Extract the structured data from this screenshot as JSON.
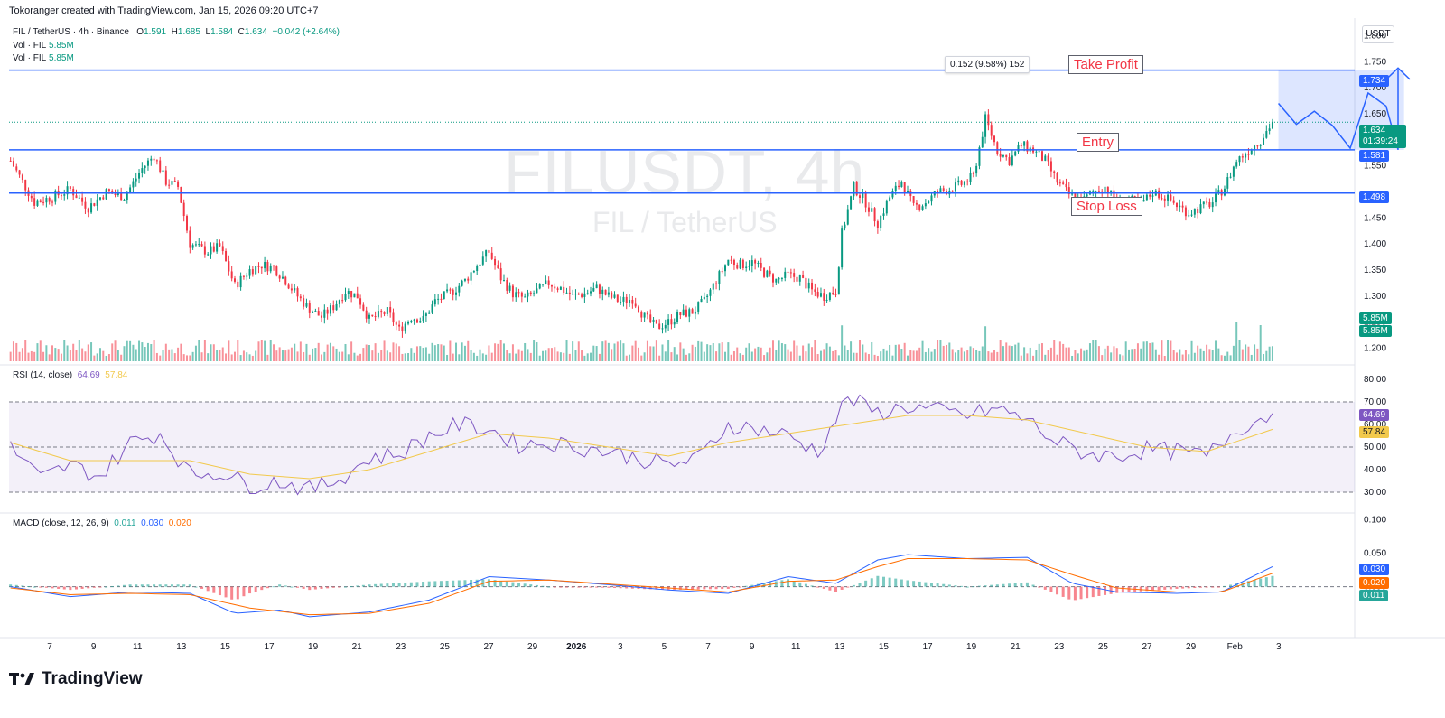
{
  "caption": "Tokoranger created with TradingView.com, Jan 15, 2026 09:20 UTC+7",
  "legend": {
    "symbol": "FIL / TetherUS · 4h · Binance",
    "o_label": "O",
    "o": "1.591",
    "h_label": "H",
    "h": "1.685",
    "l_label": "L",
    "l": "1.584",
    "c_label": "C",
    "c": "1.634",
    "change": "+0.042 (+2.64%)",
    "vol1_label": "Vol · FIL",
    "vol1": "5.85M",
    "vol2_label": "Vol · FIL",
    "vol2": "5.85M"
  },
  "currency": "USDT",
  "watermark": {
    "symbol": "FILUSDT, 4h",
    "name": "FIL / TetherUS"
  },
  "levels": {
    "take_profit": {
      "label": "Take Profit",
      "price": 1.734,
      "text": "1.734"
    },
    "entry": {
      "label": "Entry",
      "price": 1.581,
      "text": "1.581"
    },
    "stop_loss": {
      "label": "Stop Loss",
      "price": 1.498,
      "text": "1.498"
    }
  },
  "last_price": {
    "text": "1.634",
    "countdown": "01:39:24"
  },
  "volume_tags": [
    "5.85M",
    "5.85M"
  ],
  "measure_label": "0.152 (9.58%) 152",
  "rsi": {
    "title": "RSI (14, close)",
    "value": "64.69",
    "ma": "57.84"
  },
  "macd": {
    "title": "MACD (close, 12, 26, 9)",
    "hist": "0.011",
    "macd": "0.030",
    "signal": "0.020"
  },
  "brand": "TradingView",
  "colors": {
    "up": "#089981",
    "down": "#f23645",
    "level": "#2962ff",
    "rsi": "#7e57c2",
    "rsi_ma": "#f2c94c",
    "macd": "#2962ff",
    "signal": "#ff6d00"
  },
  "chart_data": [
    {
      "type": "candlestick",
      "title": "FIL / TetherUS · 4h · Binance",
      "ylim": [
        1.175,
        1.82
      ],
      "y_ticks": [
        "1.800",
        "1.750",
        "1.700",
        "1.650",
        "1.600",
        "1.550",
        "1.450",
        "1.400",
        "1.350",
        "1.300",
        "1.250",
        "1.200"
      ],
      "x_ticks": [
        "7",
        "9",
        "11",
        "13",
        "15",
        "17",
        "19",
        "21",
        "23",
        "25",
        "27",
        "29",
        "2026",
        "3",
        "5",
        "7",
        "9",
        "11",
        "13",
        "15",
        "17",
        "19",
        "21",
        "23",
        "25",
        "27",
        "29",
        "Feb",
        "3"
      ],
      "close_path": [
        {
          "i": 0,
          "y": 1.56
        },
        {
          "i": 4,
          "y": 1.52
        },
        {
          "i": 8,
          "y": 1.48
        },
        {
          "i": 14,
          "y": 1.49
        },
        {
          "i": 20,
          "y": 1.505
        },
        {
          "i": 26,
          "y": 1.47
        },
        {
          "i": 32,
          "y": 1.5
        },
        {
          "i": 38,
          "y": 1.49
        },
        {
          "i": 44,
          "y": 1.545
        },
        {
          "i": 48,
          "y": 1.57
        },
        {
          "i": 52,
          "y": 1.52
        },
        {
          "i": 56,
          "y": 1.51
        },
        {
          "i": 60,
          "y": 1.4
        },
        {
          "i": 66,
          "y": 1.385
        },
        {
          "i": 70,
          "y": 1.395
        },
        {
          "i": 75,
          "y": 1.32
        },
        {
          "i": 80,
          "y": 1.35
        },
        {
          "i": 84,
          "y": 1.36
        },
        {
          "i": 88,
          "y": 1.355
        },
        {
          "i": 92,
          "y": 1.33
        },
        {
          "i": 96,
          "y": 1.3
        },
        {
          "i": 100,
          "y": 1.275
        },
        {
          "i": 104,
          "y": 1.26
        },
        {
          "i": 108,
          "y": 1.28
        },
        {
          "i": 112,
          "y": 1.31
        },
        {
          "i": 116,
          "y": 1.3
        },
        {
          "i": 120,
          "y": 1.255
        },
        {
          "i": 126,
          "y": 1.27
        },
        {
          "i": 130,
          "y": 1.235
        },
        {
          "i": 134,
          "y": 1.26
        },
        {
          "i": 138,
          "y": 1.255
        },
        {
          "i": 142,
          "y": 1.29
        },
        {
          "i": 148,
          "y": 1.31
        },
        {
          "i": 152,
          "y": 1.33
        },
        {
          "i": 156,
          "y": 1.36
        },
        {
          "i": 160,
          "y": 1.385
        },
        {
          "i": 164,
          "y": 1.335
        },
        {
          "i": 168,
          "y": 1.305
        },
        {
          "i": 172,
          "y": 1.295
        },
        {
          "i": 176,
          "y": 1.31
        },
        {
          "i": 180,
          "y": 1.325
        },
        {
          "i": 184,
          "y": 1.315
        },
        {
          "i": 188,
          "y": 1.3
        },
        {
          "i": 192,
          "y": 1.305
        },
        {
          "i": 196,
          "y": 1.315
        },
        {
          "i": 200,
          "y": 1.3
        },
        {
          "i": 204,
          "y": 1.29
        },
        {
          "i": 208,
          "y": 1.295
        },
        {
          "i": 212,
          "y": 1.26
        },
        {
          "i": 216,
          "y": 1.24
        },
        {
          "i": 220,
          "y": 1.25
        },
        {
          "i": 224,
          "y": 1.265
        },
        {
          "i": 228,
          "y": 1.27
        },
        {
          "i": 232,
          "y": 1.29
        },
        {
          "i": 236,
          "y": 1.33
        },
        {
          "i": 240,
          "y": 1.37
        },
        {
          "i": 244,
          "y": 1.36
        },
        {
          "i": 248,
          "y": 1.365
        },
        {
          "i": 252,
          "y": 1.345
        },
        {
          "i": 256,
          "y": 1.33
        },
        {
          "i": 260,
          "y": 1.34
        },
        {
          "i": 264,
          "y": 1.335
        },
        {
          "i": 268,
          "y": 1.31
        },
        {
          "i": 272,
          "y": 1.3
        },
        {
          "i": 276,
          "y": 1.31
        },
        {
          "i": 278,
          "y": 1.42
        },
        {
          "i": 282,
          "y": 1.51
        },
        {
          "i": 286,
          "y": 1.48
        },
        {
          "i": 290,
          "y": 1.44
        },
        {
          "i": 294,
          "y": 1.49
        },
        {
          "i": 298,
          "y": 1.52
        },
        {
          "i": 302,
          "y": 1.47
        },
        {
          "i": 306,
          "y": 1.48
        },
        {
          "i": 310,
          "y": 1.5
        },
        {
          "i": 314,
          "y": 1.505
        },
        {
          "i": 318,
          "y": 1.515
        },
        {
          "i": 322,
          "y": 1.53
        },
        {
          "i": 326,
          "y": 1.64
        },
        {
          "i": 330,
          "y": 1.58
        },
        {
          "i": 334,
          "y": 1.56
        },
        {
          "i": 338,
          "y": 1.59
        },
        {
          "i": 342,
          "y": 1.58
        },
        {
          "i": 346,
          "y": 1.56
        },
        {
          "i": 350,
          "y": 1.52
        },
        {
          "i": 354,
          "y": 1.495
        },
        {
          "i": 358,
          "y": 1.48
        },
        {
          "i": 362,
          "y": 1.5
        },
        {
          "i": 366,
          "y": 1.51
        },
        {
          "i": 370,
          "y": 1.48
        },
        {
          "i": 374,
          "y": 1.485
        },
        {
          "i": 378,
          "y": 1.475
        },
        {
          "i": 382,
          "y": 1.5
        },
        {
          "i": 386,
          "y": 1.49
        },
        {
          "i": 390,
          "y": 1.475
        },
        {
          "i": 394,
          "y": 1.46
        },
        {
          "i": 398,
          "y": 1.47
        },
        {
          "i": 402,
          "y": 1.48
        },
        {
          "i": 406,
          "y": 1.51
        },
        {
          "i": 410,
          "y": 1.56
        },
        {
          "i": 414,
          "y": 1.58
        },
        {
          "i": 418,
          "y": 1.6
        },
        {
          "i": 422,
          "y": 1.634
        }
      ],
      "last_index": 422
    },
    {
      "type": "line",
      "title": "RSI (14, close)",
      "ylim": [
        22,
        84
      ],
      "y_ticks": [
        "80.00",
        "70.00",
        "60.00",
        "50.00",
        "40.00",
        "30.00"
      ],
      "band": [
        30,
        70
      ],
      "series": [
        {
          "values_at": [
            [
              0,
              50
            ],
            [
              10,
              36
            ],
            [
              20,
              42
            ],
            [
              30,
              37
            ],
            [
              40,
              52
            ],
            [
              50,
              56
            ],
            [
              60,
              38
            ],
            [
              70,
              39
            ],
            [
              80,
              33
            ],
            [
              90,
              35
            ],
            [
              100,
              31
            ],
            [
              110,
              36
            ],
            [
              120,
              45
            ],
            [
              130,
              47
            ],
            [
              140,
              55
            ],
            [
              150,
              60
            ],
            [
              160,
              58
            ],
            [
              170,
              51
            ],
            [
              180,
              52
            ],
            [
              190,
              50
            ],
            [
              200,
              48
            ],
            [
              210,
              45
            ],
            [
              220,
              42
            ],
            [
              230,
              45
            ],
            [
              240,
              60
            ],
            [
              250,
              58
            ],
            [
              260,
              55
            ],
            [
              270,
              48
            ],
            [
              280,
              72
            ],
            [
              290,
              65
            ],
            [
              300,
              68
            ],
            [
              310,
              66
            ],
            [
              320,
              64
            ],
            [
              330,
              67
            ],
            [
              340,
              62
            ],
            [
              350,
              52
            ],
            [
              360,
              47
            ],
            [
              370,
              46
            ],
            [
              380,
              49
            ],
            [
              390,
              48
            ],
            [
              400,
              46
            ],
            [
              410,
              58
            ],
            [
              422,
              64.69
            ]
          ]
        },
        {
          "values_at": [
            [
              0,
              52
            ],
            [
              20,
              44
            ],
            [
              40,
              44
            ],
            [
              60,
              44
            ],
            [
              80,
              38
            ],
            [
              100,
              36
            ],
            [
              120,
              40
            ],
            [
              140,
              48
            ],
            [
              160,
              56
            ],
            [
              180,
              54
            ],
            [
              200,
              50
            ],
            [
              220,
              46
            ],
            [
              240,
              52
            ],
            [
              260,
              56
            ],
            [
              280,
              60
            ],
            [
              300,
              64
            ],
            [
              320,
              64
            ],
            [
              340,
              62
            ],
            [
              360,
              56
            ],
            [
              380,
              50
            ],
            [
              400,
              48
            ],
            [
              422,
              57.84
            ]
          ]
        }
      ]
    },
    {
      "type": "line",
      "title": "MACD (close, 12, 26, 9)",
      "ylim": [
        -0.075,
        0.105
      ],
      "y_ticks": [
        "0.100",
        "0.050",
        "0.000"
      ],
      "series": [
        {
          "values_at": [
            [
              0,
              0.0
            ],
            [
              20,
              -0.015
            ],
            [
              40,
              -0.008
            ],
            [
              60,
              -0.01
            ],
            [
              75,
              -0.04
            ],
            [
              90,
              -0.035
            ],
            [
              100,
              -0.045
            ],
            [
              120,
              -0.038
            ],
            [
              140,
              -0.02
            ],
            [
              160,
              0.015
            ],
            [
              180,
              0.01
            ],
            [
              200,
              0.003
            ],
            [
              220,
              -0.005
            ],
            [
              240,
              -0.01
            ],
            [
              260,
              0.015
            ],
            [
              276,
              0.005
            ],
            [
              290,
              0.04
            ],
            [
              300,
              0.048
            ],
            [
              320,
              0.042
            ],
            [
              340,
              0.044
            ],
            [
              355,
              0.005
            ],
            [
              370,
              -0.008
            ],
            [
              390,
              -0.01
            ],
            [
              405,
              -0.008
            ],
            [
              422,
              0.03
            ]
          ]
        },
        {
          "values_at": [
            [
              0,
              -0.002
            ],
            [
              20,
              -0.012
            ],
            [
              40,
              -0.01
            ],
            [
              60,
              -0.012
            ],
            [
              80,
              -0.032
            ],
            [
              100,
              -0.042
            ],
            [
              120,
              -0.04
            ],
            [
              140,
              -0.025
            ],
            [
              160,
              0.008
            ],
            [
              180,
              0.01
            ],
            [
              200,
              0.004
            ],
            [
              220,
              -0.002
            ],
            [
              240,
              -0.008
            ],
            [
              260,
              0.008
            ],
            [
              276,
              0.01
            ],
            [
              290,
              0.03
            ],
            [
              300,
              0.042
            ],
            [
              320,
              0.042
            ],
            [
              340,
              0.04
            ],
            [
              355,
              0.018
            ],
            [
              370,
              -0.002
            ],
            [
              390,
              -0.008
            ],
            [
              405,
              -0.008
            ],
            [
              422,
              0.02
            ]
          ]
        }
      ]
    }
  ]
}
